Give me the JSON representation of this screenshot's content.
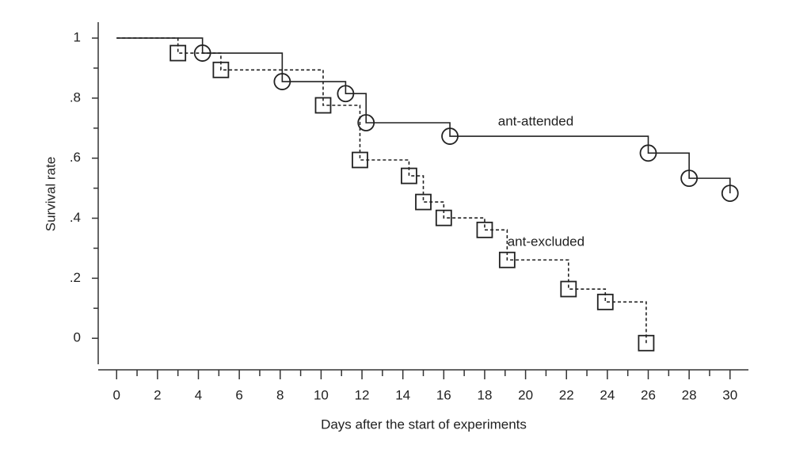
{
  "chart_data": {
    "type": "step",
    "xlabel": "Days after the start of experiments",
    "ylabel": "Survival rate",
    "xlim": [
      -0.9,
      30.9
    ],
    "ylim": [
      -0.105,
      1.053
    ],
    "xticks": [
      0,
      2,
      4,
      6,
      8,
      10,
      12,
      14,
      16,
      18,
      20,
      22,
      24,
      26,
      28,
      30
    ],
    "xminorticks": [
      1,
      3,
      5,
      7,
      9,
      11,
      13,
      15,
      17,
      19,
      21,
      23,
      25,
      27,
      29
    ],
    "yticks": [
      0,
      {
        "value": 0.2,
        "label": ".2"
      },
      {
        "value": 0.4,
        "label": ".4"
      },
      {
        "value": 0.6,
        "label": ".6"
      },
      {
        "value": 0.8,
        "label": ".8"
      },
      1
    ],
    "yminorticks": [
      0.1,
      0.3,
      0.5,
      0.7,
      0.9
    ],
    "series": [
      {
        "name": "ant-attended",
        "color": "#222222",
        "linestyle": "solid",
        "marker": "circle",
        "x": [
          0,
          4.2,
          8.1,
          11.2,
          12.2,
          16.3,
          26.0,
          28.0,
          30.0
        ],
        "values": [
          1,
          0.95,
          0.855,
          0.815,
          0.718,
          0.673,
          0.617,
          0.533,
          0.483
        ]
      },
      {
        "name": "ant-excluded",
        "color": "#222222",
        "linestyle": "dashed",
        "marker": "square",
        "x": [
          0,
          3.0,
          5.1,
          10.1,
          11.9,
          14.3,
          15.0,
          16.0,
          18.0,
          19.1,
          22.1,
          23.9,
          25.9
        ],
        "values": [
          1,
          0.95,
          0.894,
          0.776,
          0.594,
          0.541,
          0.454,
          0.401,
          0.361,
          0.261,
          0.164,
          0.121,
          -0.016
        ]
      }
    ],
    "annotations": [
      {
        "text": "ant-attended",
        "x": 20.5,
        "y": 0.72
      },
      {
        "text": "ant-excluded",
        "x": 21.0,
        "y": 0.32
      }
    ]
  }
}
